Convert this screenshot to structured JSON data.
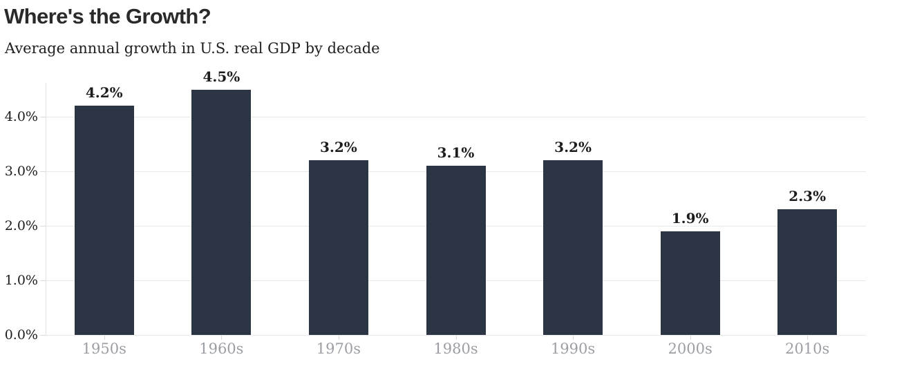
{
  "header": {
    "title": "Where's the Growth?",
    "subtitle": "Average annual growth in U.S. real GDP by decade"
  },
  "chart_data": {
    "type": "bar",
    "title": "Where's the Growth?",
    "subtitle": "Average annual growth in U.S. real GDP by decade",
    "categories": [
      "1950s",
      "1960s",
      "1970s",
      "1980s",
      "1990s",
      "2000s",
      "2010s"
    ],
    "values": [
      4.2,
      4.5,
      3.2,
      3.1,
      3.2,
      1.9,
      2.3
    ],
    "bar_labels": [
      "4.2%",
      "4.5%",
      "3.2%",
      "3.1%",
      "3.2%",
      "1.9%",
      "2.3%"
    ],
    "xlabel": "",
    "ylabel": "",
    "ylim": [
      0,
      4.6
    ],
    "yticks": [
      {
        "value": 0,
        "label": "0.0%"
      },
      {
        "value": 1,
        "label": "1.0%"
      },
      {
        "value": 2,
        "label": "2.0%"
      },
      {
        "value": 3,
        "label": "3.0%"
      },
      {
        "value": 4,
        "label": "4.0%"
      }
    ],
    "grid": "horizontal",
    "legend": "none",
    "colors": {
      "bar": "#2b3544",
      "gridline": "#e9e9e9",
      "axis_line": "#e2e2e2",
      "tick": "#d9d9d9",
      "y_tick_label": "#1c1c1c",
      "x_tick_label": "#9b9ea3",
      "bar_label": "#1c1c1c",
      "title": "#2a2a2a",
      "subtitle": "#1e1e1e",
      "background": "#ffffff"
    }
  }
}
